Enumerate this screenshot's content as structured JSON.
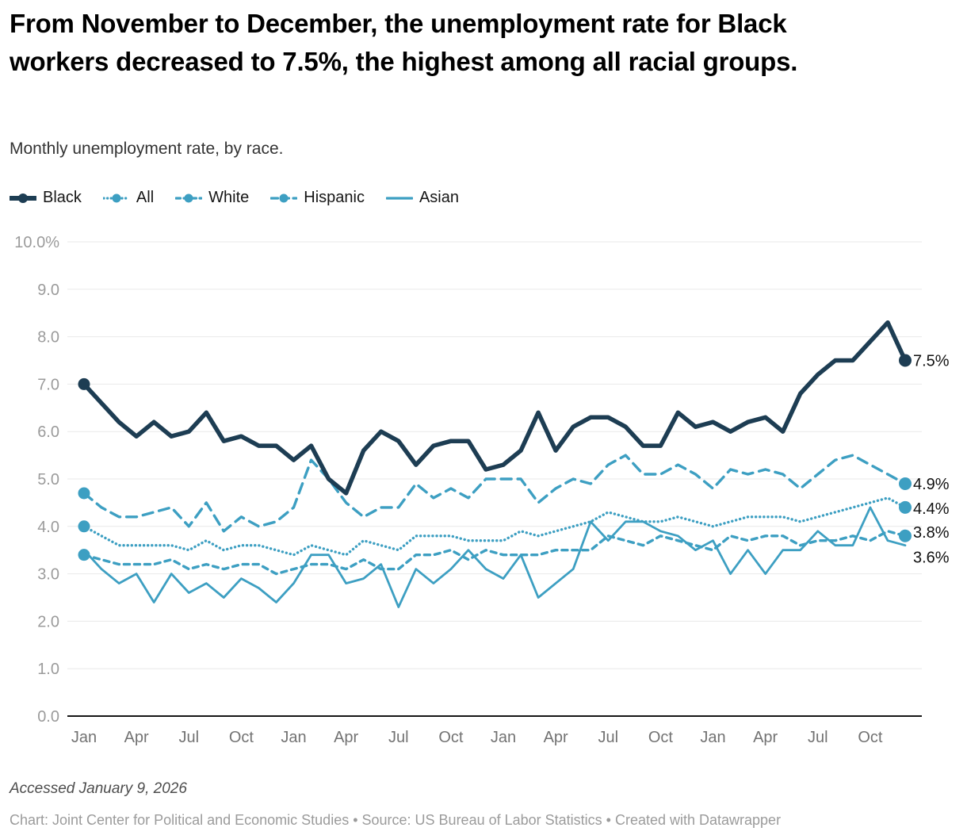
{
  "chart_data": {
    "type": "line",
    "title": "From November to December, the unemployment rate for Black workers decreased to 7.5%, the highest among all racial groups.",
    "subtitle": "Monthly unemployment rate, by race.",
    "legend_position": "top",
    "grid": true,
    "ylim": [
      0,
      10
    ],
    "y_tick_labels": [
      "10.0%",
      "9.0",
      "8.0",
      "7.0",
      "6.0",
      "5.0",
      "4.0",
      "3.0",
      "2.0",
      "1.0",
      "0.0"
    ],
    "x_tick_labels": [
      "Jan",
      "Apr",
      "Jul",
      "Oct",
      "Jan",
      "Apr",
      "Jul",
      "Oct",
      "Jan",
      "Apr",
      "Jul",
      "Oct",
      "Jan",
      "Apr",
      "Jul",
      "Oct"
    ],
    "x_tick_every_n_months": 3,
    "points_per_series": 48,
    "series": [
      {
        "name": "Black",
        "color": "#1d3d53",
        "style": "solid",
        "width": 5.5,
        "marker_start": true,
        "marker_end": true,
        "end_label": "7.5%",
        "values": [
          7.0,
          6.6,
          6.2,
          5.9,
          6.2,
          5.9,
          6.0,
          6.4,
          5.8,
          5.9,
          5.7,
          5.7,
          5.4,
          5.7,
          5.0,
          4.7,
          5.6,
          6.0,
          5.8,
          5.3,
          5.7,
          5.8,
          5.8,
          5.2,
          5.3,
          5.6,
          6.4,
          5.6,
          6.1,
          6.3,
          6.3,
          6.1,
          5.7,
          5.7,
          6.4,
          6.1,
          6.2,
          6.0,
          6.2,
          6.3,
          6.0,
          6.8,
          7.2,
          7.5,
          7.5,
          7.9,
          8.3,
          7.5
        ]
      },
      {
        "name": "All",
        "color": "#3d9fc2",
        "style": "dotted",
        "width": 3.4,
        "marker_start": true,
        "marker_end": true,
        "end_label": "4.4%",
        "values": [
          4.0,
          3.8,
          3.6,
          3.6,
          3.6,
          3.6,
          3.5,
          3.7,
          3.5,
          3.6,
          3.6,
          3.5,
          3.4,
          3.6,
          3.5,
          3.4,
          3.7,
          3.6,
          3.5,
          3.8,
          3.8,
          3.8,
          3.7,
          3.7,
          3.7,
          3.9,
          3.8,
          3.9,
          4.0,
          4.1,
          4.3,
          4.2,
          4.1,
          4.1,
          4.2,
          4.1,
          4.0,
          4.1,
          4.2,
          4.2,
          4.2,
          4.1,
          4.2,
          4.3,
          4.4,
          4.5,
          4.6,
          4.4
        ]
      },
      {
        "name": "White",
        "color": "#3d9fc2",
        "style": "dashed-short",
        "width": 3.4,
        "marker_start": true,
        "marker_end": true,
        "end_label": "3.8%",
        "values": [
          3.4,
          3.3,
          3.2,
          3.2,
          3.2,
          3.3,
          3.1,
          3.2,
          3.1,
          3.2,
          3.2,
          3.0,
          3.1,
          3.2,
          3.2,
          3.1,
          3.3,
          3.1,
          3.1,
          3.4,
          3.4,
          3.5,
          3.3,
          3.5,
          3.4,
          3.4,
          3.4,
          3.5,
          3.5,
          3.5,
          3.8,
          3.7,
          3.6,
          3.8,
          3.7,
          3.6,
          3.5,
          3.8,
          3.7,
          3.8,
          3.8,
          3.6,
          3.7,
          3.7,
          3.8,
          3.7,
          3.9,
          3.8
        ]
      },
      {
        "name": "Hispanic",
        "color": "#3d9fc2",
        "style": "dashed-long",
        "width": 3.4,
        "marker_start": true,
        "marker_end": true,
        "end_label": "4.9%",
        "values": [
          4.7,
          4.4,
          4.2,
          4.2,
          4.3,
          4.4,
          4.0,
          4.5,
          3.9,
          4.2,
          4.0,
          4.1,
          4.4,
          5.4,
          5.0,
          4.5,
          4.2,
          4.4,
          4.4,
          4.9,
          4.6,
          4.8,
          4.6,
          5.0,
          5.0,
          5.0,
          4.5,
          4.8,
          5.0,
          4.9,
          5.3,
          5.5,
          5.1,
          5.1,
          5.3,
          5.1,
          4.8,
          5.2,
          5.1,
          5.2,
          5.1,
          4.8,
          5.1,
          5.4,
          5.5,
          5.3,
          5.1,
          4.9
        ]
      },
      {
        "name": "Asian",
        "color": "#3d9fc2",
        "style": "solid",
        "width": 2.8,
        "marker_start": false,
        "marker_end": false,
        "end_label": "3.6%",
        "values": [
          3.5,
          3.1,
          2.8,
          3.0,
          2.4,
          3.0,
          2.6,
          2.8,
          2.5,
          2.9,
          2.7,
          2.4,
          2.8,
          3.4,
          3.4,
          2.8,
          2.9,
          3.2,
          2.3,
          3.1,
          2.8,
          3.1,
          3.5,
          3.1,
          2.9,
          3.4,
          2.5,
          2.8,
          3.1,
          4.1,
          3.7,
          4.1,
          4.1,
          3.9,
          3.8,
          3.5,
          3.7,
          3.0,
          3.5,
          3.0,
          3.5,
          3.5,
          3.9,
          3.6,
          3.6,
          4.4,
          3.7,
          3.6
        ]
      }
    ]
  },
  "footer": {
    "accessed": "Accessed January 9, 2026",
    "credit": "Chart: Joint Center for Political and Economic Studies • Source: US Bureau of Labor Statistics • Created with Datawrapper"
  },
  "colors": {
    "navy": "#1d3d53",
    "blue": "#3d9fc2",
    "grid": "#e9e9e9",
    "baseline": "#161616",
    "y_tick_text": "#9b9b9b",
    "x_tick_text": "#737373",
    "end_label_text": "#111111"
  }
}
